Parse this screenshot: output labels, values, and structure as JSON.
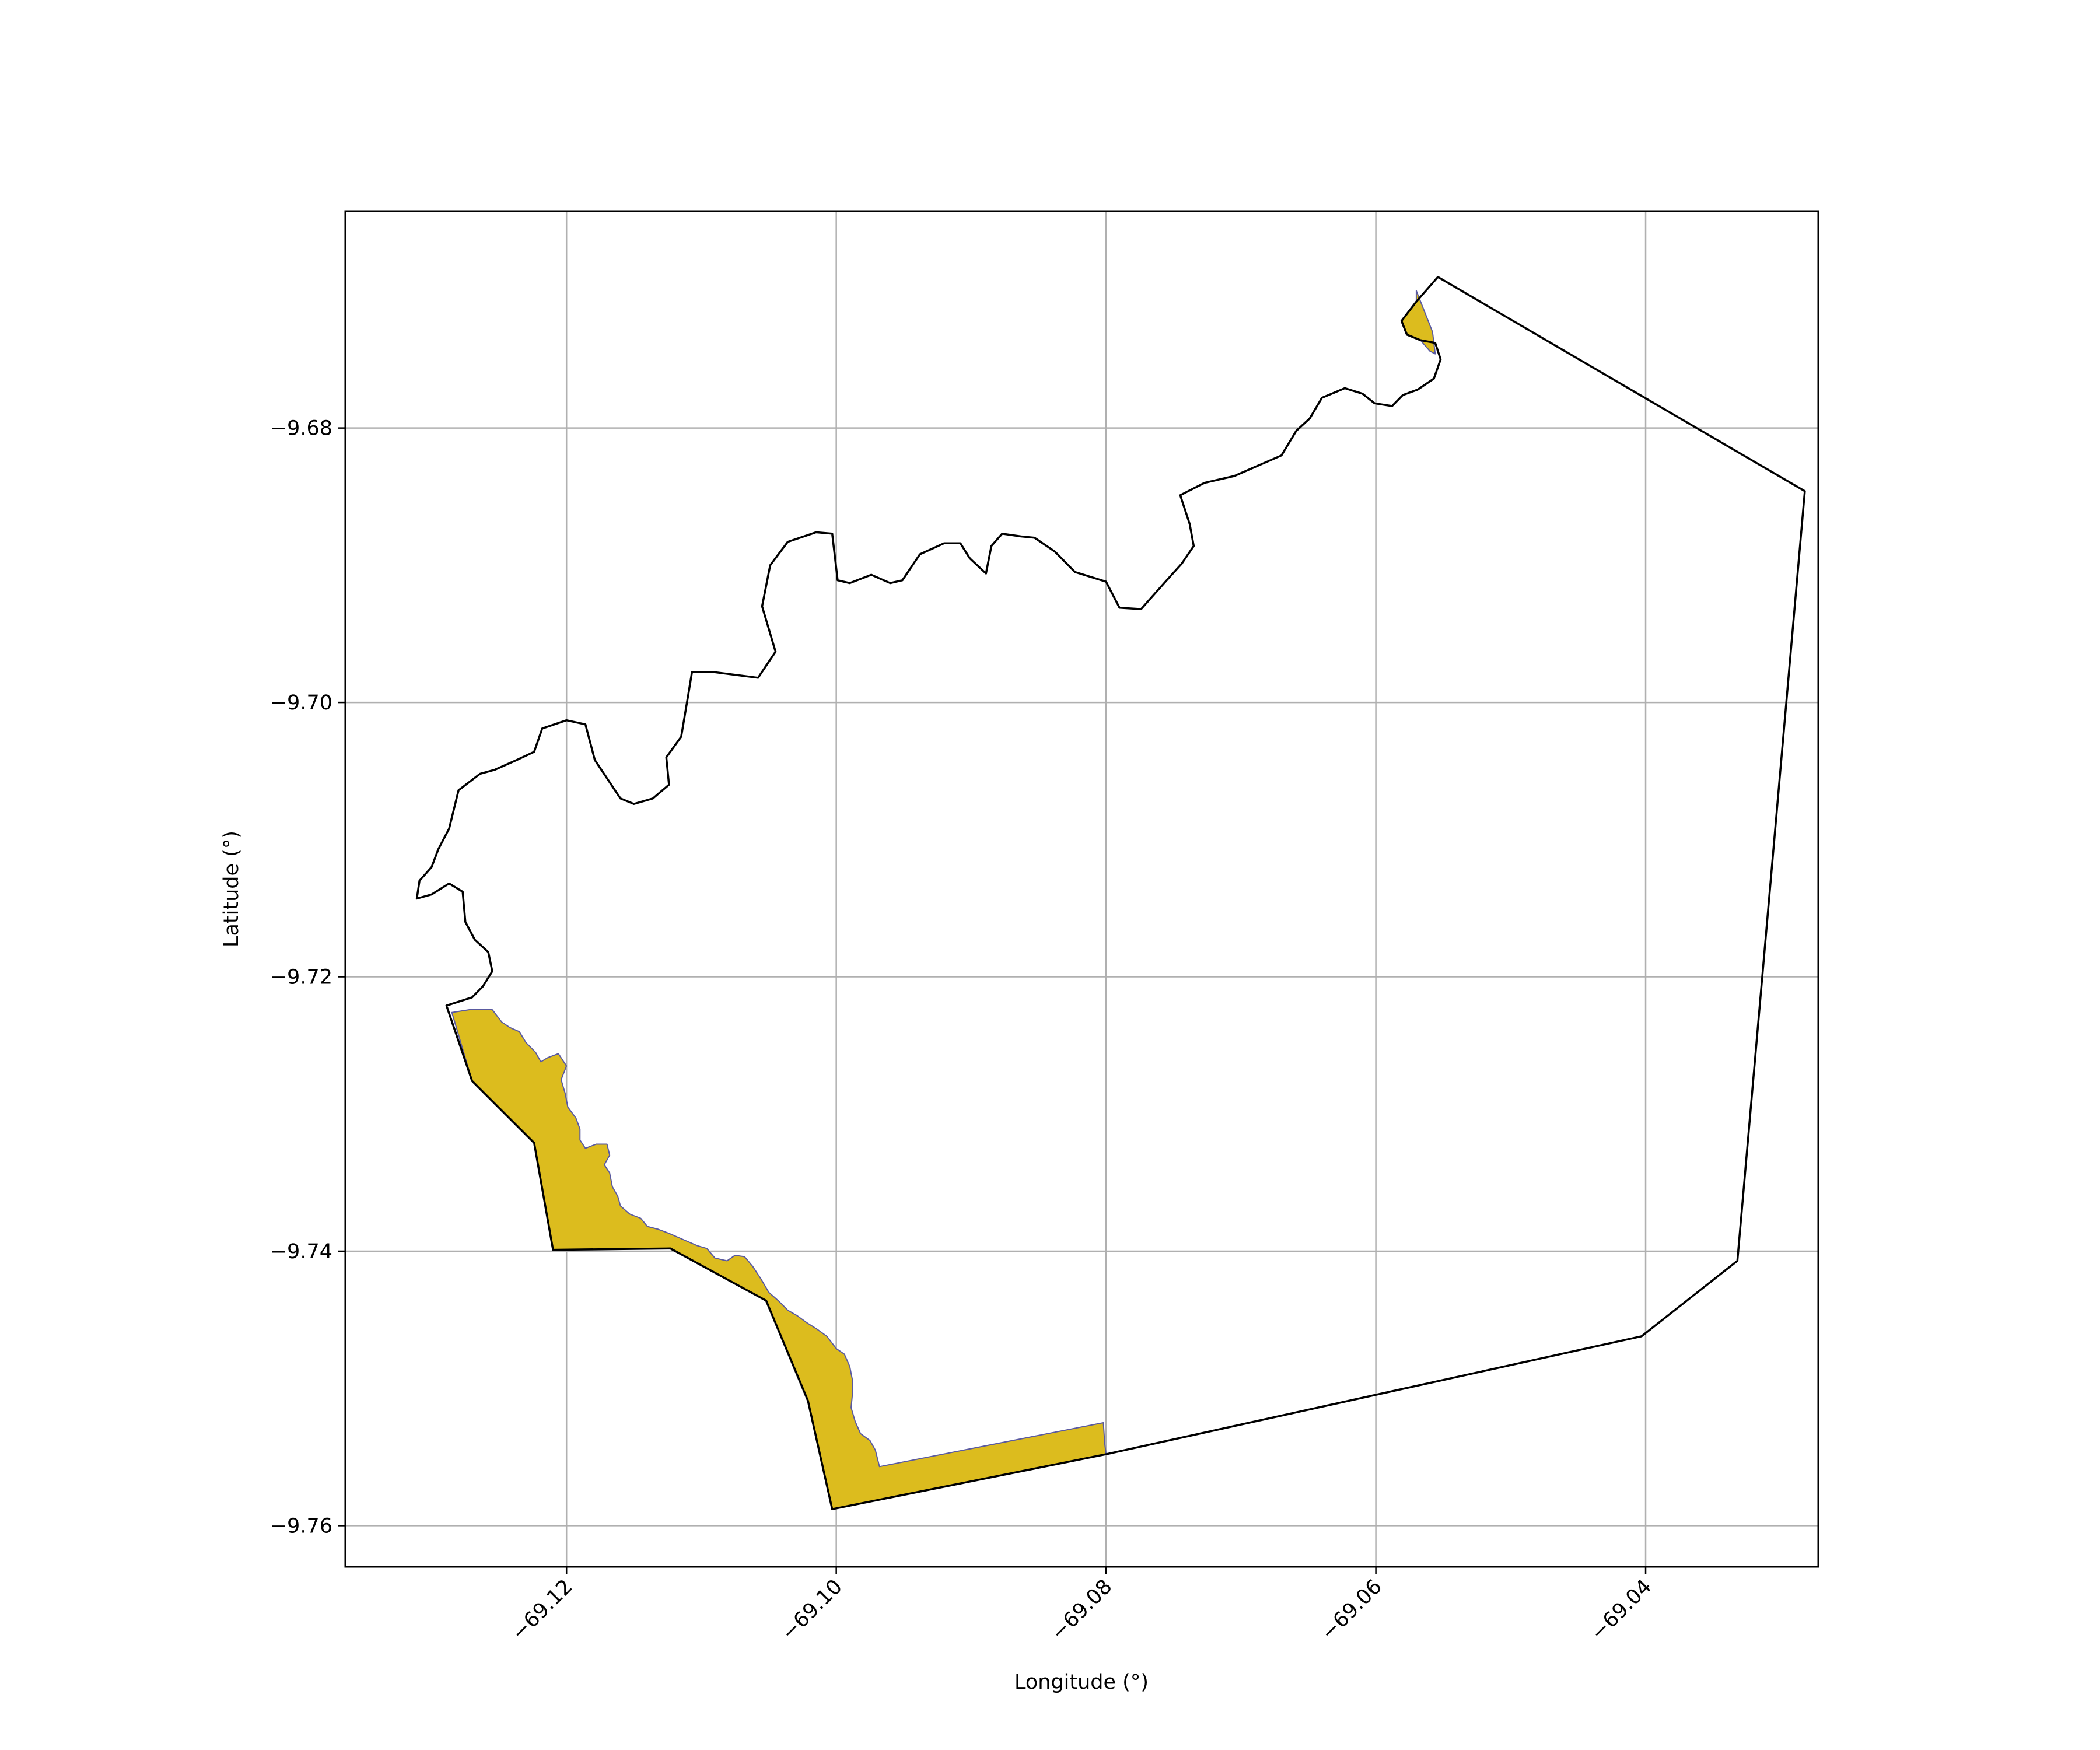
{
  "chart_data": {
    "type": "map",
    "xlabel": "Longitude (°)",
    "ylabel": "Latitude (°)",
    "xlim": [
      -69.1364,
      -69.0272
    ],
    "ylim": [
      -9.763,
      -9.6642
    ],
    "xticks": [
      -69.12,
      -69.1,
      -69.08,
      -69.06,
      -69.04
    ],
    "xtick_labels": [
      "−69.12",
      "−69.10",
      "−69.08",
      "−69.06",
      "−69.04"
    ],
    "yticks": [
      -9.68,
      -9.7,
      -9.72,
      -9.74,
      -9.76
    ],
    "ytick_labels": [
      "−9.68",
      "−9.70",
      "−9.72",
      "−9.74",
      "−9.76"
    ],
    "grid": true,
    "colors": {
      "fill": "#dcbc1e",
      "fill_edge": "#5a5aa0",
      "boundary": "#000000",
      "grid": "#b0b0b0"
    },
    "boundary": [
      [
        -69.1289,
        -9.7221
      ],
      [
        -69.127,
        -9.7215
      ],
      [
        -69.1262,
        -9.7207
      ],
      [
        -69.1255,
        -9.7196
      ],
      [
        -69.1258,
        -9.7182
      ],
      [
        -69.1268,
        -9.7173
      ],
      [
        -69.1275,
        -9.716
      ],
      [
        -69.1277,
        -9.7138
      ],
      [
        -69.1287,
        -9.7132
      ],
      [
        -69.13,
        -9.714
      ],
      [
        -69.1311,
        -9.7143
      ],
      [
        -69.1309,
        -9.713
      ],
      [
        -69.13,
        -9.712
      ],
      [
        -69.1295,
        -9.7107
      ],
      [
        -69.1287,
        -9.7092
      ],
      [
        -69.128,
        -9.7064
      ],
      [
        -69.1264,
        -9.7052
      ],
      [
        -69.1253,
        -9.7049
      ],
      [
        -69.1237,
        -9.7042
      ],
      [
        -69.1224,
        -9.7036
      ],
      [
        -69.1218,
        -9.7019
      ],
      [
        -69.12,
        -9.7013
      ],
      [
        -69.1186,
        -9.7016
      ],
      [
        -69.1179,
        -9.7042
      ],
      [
        -69.116,
        -9.707
      ],
      [
        -69.115,
        -9.7074
      ],
      [
        -69.1136,
        -9.707
      ],
      [
        -69.1124,
        -9.706
      ],
      [
        -69.1126,
        -9.704
      ],
      [
        -69.1115,
        -9.7025
      ],
      [
        -69.111,
        -9.6996
      ],
      [
        -69.1107,
        -9.6978
      ],
      [
        -69.109,
        -9.6978
      ],
      [
        -69.1058,
        -9.6982
      ],
      [
        -69.1045,
        -9.6963
      ],
      [
        -69.1055,
        -9.693
      ],
      [
        -69.1049,
        -9.69
      ],
      [
        -69.1036,
        -9.6883
      ],
      [
        -69.1015,
        -9.6876
      ],
      [
        -69.1003,
        -9.6877
      ],
      [
        -69.0999,
        -9.6911
      ],
      [
        -69.099,
        -9.6913
      ],
      [
        -69.0974,
        -9.6907
      ],
      [
        -69.096,
        -9.6913
      ],
      [
        -69.0951,
        -9.6911
      ],
      [
        -69.0938,
        -9.6892
      ],
      [
        -69.092,
        -9.6884
      ],
      [
        -69.0908,
        -9.6884
      ],
      [
        -69.0901,
        -9.6895
      ],
      [
        -69.0889,
        -9.6906
      ],
      [
        -69.0885,
        -9.6886
      ],
      [
        -69.0877,
        -9.6877
      ],
      [
        -69.0863,
        -9.6879
      ],
      [
        -69.0853,
        -9.688
      ],
      [
        -69.0838,
        -9.689
      ],
      [
        -69.0823,
        -9.6905
      ],
      [
        -69.08,
        -9.6912
      ],
      [
        -69.079,
        -9.6931
      ],
      [
        -69.0774,
        -9.6932
      ],
      [
        -69.0756,
        -9.6912
      ],
      [
        -69.0744,
        -9.6899
      ],
      [
        -69.0735,
        -9.6886
      ],
      [
        -69.0738,
        -9.687
      ],
      [
        -69.0745,
        -9.6849
      ],
      [
        -69.0727,
        -9.684
      ],
      [
        -69.0705,
        -9.6835
      ],
      [
        -69.0684,
        -9.6826
      ],
      [
        -69.067,
        -9.682
      ],
      [
        -69.0659,
        -9.6802
      ],
      [
        -69.0649,
        -9.6793
      ],
      [
        -69.064,
        -9.6778
      ],
      [
        -69.0623,
        -9.6771
      ],
      [
        -69.061,
        -9.6775
      ],
      [
        -69.0601,
        -9.6782
      ],
      [
        -69.0588,
        -9.6784
      ],
      [
        -69.058,
        -9.6776
      ],
      [
        -69.0569,
        -9.6772
      ],
      [
        -69.0557,
        -9.6764
      ],
      [
        -69.0552,
        -9.675
      ],
      [
        -69.0556,
        -9.6738
      ],
      [
        -69.0567,
        -9.6736
      ],
      [
        -69.0577,
        -9.6732
      ],
      [
        -69.0581,
        -9.6722
      ],
      [
        -69.057,
        -9.6708
      ],
      [
        -69.0554,
        -9.669
      ],
      [
        -69.0282,
        -9.6846
      ],
      [
        -69.0332,
        -9.7407
      ],
      [
        -69.0403,
        -9.7462
      ],
      [
        -69.08,
        -9.7548
      ],
      [
        -69.1003,
        -9.7588
      ],
      [
        -69.1021,
        -9.7509
      ],
      [
        -69.1052,
        -9.7436
      ],
      [
        -69.1123,
        -9.7398
      ],
      [
        -69.121,
        -9.7399
      ],
      [
        -69.1224,
        -9.7321
      ],
      [
        -69.127,
        -9.7276
      ],
      [
        -69.1289,
        -9.7221
      ]
    ],
    "filled_regions": [
      [
        [
          -69.1285,
          -9.7226
        ],
        [
          -69.1272,
          -9.7224
        ],
        [
          -69.1255,
          -9.7224
        ],
        [
          -69.1248,
          -9.7233
        ],
        [
          -69.1242,
          -9.7237
        ],
        [
          -69.1235,
          -9.724
        ],
        [
          -69.123,
          -9.7248
        ],
        [
          -69.1223,
          -9.7255
        ],
        [
          -69.1219,
          -9.7262
        ],
        [
          -69.1214,
          -9.7259
        ],
        [
          -69.1206,
          -9.7256
        ],
        [
          -69.12,
          -9.7265
        ],
        [
          -69.1204,
          -9.7275
        ],
        [
          -69.1201,
          -9.7285
        ],
        [
          -69.1199,
          -9.7295
        ],
        [
          -69.1193,
          -9.7303
        ],
        [
          -69.119,
          -9.7311
        ],
        [
          -69.119,
          -9.7319
        ],
        [
          -69.1186,
          -9.7325
        ],
        [
          -69.1178,
          -9.7322
        ],
        [
          -69.117,
          -9.7322
        ],
        [
          -69.1168,
          -9.733
        ],
        [
          -69.1172,
          -9.7337
        ],
        [
          -69.1168,
          -9.7343
        ],
        [
          -69.1166,
          -9.7353
        ],
        [
          -69.1162,
          -9.736
        ],
        [
          -69.116,
          -9.7367
        ],
        [
          -69.1153,
          -9.7373
        ],
        [
          -69.1145,
          -9.7376
        ],
        [
          -69.114,
          -9.7382
        ],
        [
          -69.1132,
          -9.7384
        ],
        [
          -69.1124,
          -9.7387
        ],
        [
          -69.1117,
          -9.739
        ],
        [
          -69.111,
          -9.7393
        ],
        [
          -69.1103,
          -9.7396
        ],
        [
          -69.1096,
          -9.7398
        ],
        [
          -69.109,
          -9.7405
        ],
        [
          -69.1081,
          -9.7407
        ],
        [
          -69.1075,
          -9.7403
        ],
        [
          -69.1068,
          -9.7404
        ],
        [
          -69.1062,
          -9.7411
        ],
        [
          -69.1056,
          -9.742
        ],
        [
          -69.105,
          -9.743
        ],
        [
          -69.1043,
          -9.7436
        ],
        [
          -69.1036,
          -9.7443
        ],
        [
          -69.1029,
          -9.7447
        ],
        [
          -69.1022,
          -9.7452
        ],
        [
          -69.1014,
          -9.7457
        ],
        [
          -69.1007,
          -9.7462
        ],
        [
          -69.1,
          -9.7471
        ],
        [
          -69.0994,
          -9.7475
        ],
        [
          -69.099,
          -9.7484
        ],
        [
          -69.0988,
          -9.7494
        ],
        [
          -69.0988,
          -9.7504
        ],
        [
          -69.0989,
          -9.7514
        ],
        [
          -69.0986,
          -9.7524
        ],
        [
          -69.0982,
          -9.7533
        ],
        [
          -69.0975,
          -9.7538
        ],
        [
          -69.0971,
          -9.7545
        ],
        [
          -69.0968,
          -9.7557
        ],
        [
          -69.0802,
          -9.7525
        ],
        [
          -69.0801,
          -9.754
        ],
        [
          -69.08,
          -9.7548
        ],
        [
          -69.1003,
          -9.7588
        ],
        [
          -69.1021,
          -9.7509
        ],
        [
          -69.1052,
          -9.7436
        ],
        [
          -69.1123,
          -9.7398
        ],
        [
          -69.121,
          -9.7399
        ],
        [
          -69.1224,
          -9.7321
        ],
        [
          -69.127,
          -9.7276
        ],
        [
          -69.1285,
          -9.7226
        ]
      ],
      [
        [
          -69.0581,
          -9.6722
        ],
        [
          -69.057,
          -9.6708
        ],
        [
          -69.057,
          -9.67
        ],
        [
          -69.0558,
          -9.673
        ],
        [
          -69.0556,
          -9.6746
        ],
        [
          -69.056,
          -9.6744
        ],
        [
          -69.0567,
          -9.6736
        ],
        [
          -69.0577,
          -9.6732
        ],
        [
          -69.0581,
          -9.6722
        ]
      ]
    ]
  }
}
